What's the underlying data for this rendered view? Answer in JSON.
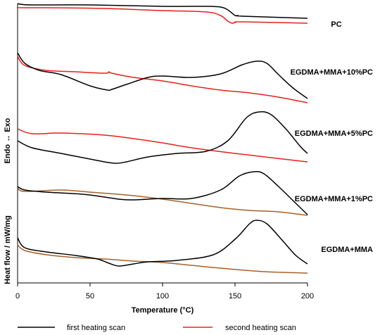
{
  "chart_data": {
    "type": "line",
    "xlabel": "Temperature (°C)",
    "ylabel": "Heat flow / mW/mg",
    "y_annotation": "Endo ↔ Exo",
    "xlim": [
      0,
      200
    ],
    "xticks": [
      "0",
      "50",
      "100",
      "150",
      "200"
    ],
    "grid": false,
    "legend_position": "bottom",
    "legend": [
      {
        "label": "first heating scan",
        "color": "#000000"
      },
      {
        "label": "second heating scan",
        "color": "#e8201c"
      }
    ],
    "samples": [
      {
        "label": "PC",
        "first_color": "#000000",
        "second_color": "#e8201c",
        "first": [
          [
            0,
            5
          ],
          [
            2,
            6
          ],
          [
            10,
            7
          ],
          [
            50,
            7
          ],
          [
            100,
            9
          ],
          [
            130,
            9
          ],
          [
            140,
            10
          ],
          [
            145,
            14
          ],
          [
            150,
            22
          ],
          [
            152,
            22
          ],
          [
            155,
            23
          ],
          [
            200,
            26
          ]
        ],
        "second": [
          [
            0,
            10
          ],
          [
            2,
            11
          ],
          [
            20,
            11
          ],
          [
            60,
            12
          ],
          [
            100,
            15
          ],
          [
            130,
            17
          ],
          [
            140,
            22
          ],
          [
            145,
            30
          ],
          [
            148,
            33
          ],
          [
            150,
            32
          ],
          [
            155,
            31
          ],
          [
            200,
            33
          ]
        ]
      },
      {
        "label": "EGDMA+MMA+10%PC",
        "first_color": "#000000",
        "second_color": "#e8201c",
        "first": [
          [
            0,
            75
          ],
          [
            5,
            90
          ],
          [
            15,
            100
          ],
          [
            30,
            106
          ],
          [
            50,
            122
          ],
          [
            62,
            128
          ],
          [
            65,
            127
          ],
          [
            75,
            120
          ],
          [
            90,
            110
          ],
          [
            100,
            108
          ],
          [
            120,
            110
          ],
          [
            140,
            105
          ],
          [
            155,
            92
          ],
          [
            165,
            87
          ],
          [
            172,
            90
          ],
          [
            180,
            106
          ],
          [
            190,
            125
          ],
          [
            200,
            140
          ]
        ],
        "second": [
          [
            0,
            80
          ],
          [
            5,
            93
          ],
          [
            20,
            100
          ],
          [
            40,
            102
          ],
          [
            60,
            104
          ],
          [
            63,
            102
          ],
          [
            65,
            104
          ],
          [
            80,
            110
          ],
          [
            100,
            115
          ],
          [
            120,
            122
          ],
          [
            140,
            128
          ],
          [
            160,
            132
          ],
          [
            180,
            138
          ],
          [
            200,
            146
          ]
        ]
      },
      {
        "label": "EGDMA+MMA+5%PC",
        "first_color": "#000000",
        "second_color": "#e8201c",
        "first": [
          [
            0,
            200
          ],
          [
            10,
            210
          ],
          [
            30,
            218
          ],
          [
            50,
            226
          ],
          [
            60,
            230
          ],
          [
            68,
            232
          ],
          [
            75,
            230
          ],
          [
            90,
            223
          ],
          [
            110,
            218
          ],
          [
            130,
            215
          ],
          [
            145,
            200
          ],
          [
            158,
            167
          ],
          [
            167,
            159
          ],
          [
            175,
            163
          ],
          [
            185,
            183
          ],
          [
            195,
            208
          ],
          [
            200,
            218
          ]
        ],
        "second": [
          [
            0,
            183
          ],
          [
            10,
            190
          ],
          [
            30,
            189
          ],
          [
            60,
            192
          ],
          [
            80,
            197
          ],
          [
            100,
            203
          ],
          [
            120,
            210
          ],
          [
            150,
            218
          ],
          [
            175,
            224
          ],
          [
            200,
            230
          ]
        ]
      },
      {
        "label": "EGDMA+MMA+1%PC",
        "first_color": "#000000",
        "second_color": "#a8602a",
        "first": [
          [
            0,
            265
          ],
          [
            5,
            270
          ],
          [
            20,
            273
          ],
          [
            45,
            276
          ],
          [
            60,
            280
          ],
          [
            70,
            283
          ],
          [
            80,
            284
          ],
          [
            100,
            282
          ],
          [
            120,
            282
          ],
          [
            140,
            270
          ],
          [
            153,
            250
          ],
          [
            163,
            244
          ],
          [
            170,
            247
          ],
          [
            180,
            265
          ],
          [
            190,
            285
          ],
          [
            200,
            305
          ]
        ],
        "second": [
          [
            0,
            267
          ],
          [
            5,
            272
          ],
          [
            30,
            270
          ],
          [
            50,
            273
          ],
          [
            80,
            278
          ],
          [
            100,
            283
          ],
          [
            120,
            289
          ],
          [
            140,
            295
          ],
          [
            160,
            299
          ],
          [
            180,
            301
          ],
          [
            200,
            306
          ]
        ]
      },
      {
        "label": "EGDMA+MMA",
        "first_color": "#000000",
        "second_color": "#a8602a",
        "first": [
          [
            0,
            338
          ],
          [
            5,
            352
          ],
          [
            20,
            358
          ],
          [
            40,
            363
          ],
          [
            55,
            368
          ],
          [
            63,
            374
          ],
          [
            70,
            378
          ],
          [
            80,
            375
          ],
          [
            90,
            372
          ],
          [
            110,
            370
          ],
          [
            135,
            362
          ],
          [
            150,
            340
          ],
          [
            160,
            318
          ],
          [
            165,
            313
          ],
          [
            172,
            318
          ],
          [
            182,
            340
          ],
          [
            192,
            363
          ],
          [
            200,
            375
          ]
        ],
        "second": [
          [
            0,
            348
          ],
          [
            5,
            356
          ],
          [
            20,
            362
          ],
          [
            40,
            366
          ],
          [
            60,
            368
          ],
          [
            80,
            371
          ],
          [
            100,
            373
          ],
          [
            120,
            377
          ],
          [
            140,
            381
          ],
          [
            170,
            386
          ],
          [
            200,
            388
          ]
        ]
      }
    ]
  }
}
